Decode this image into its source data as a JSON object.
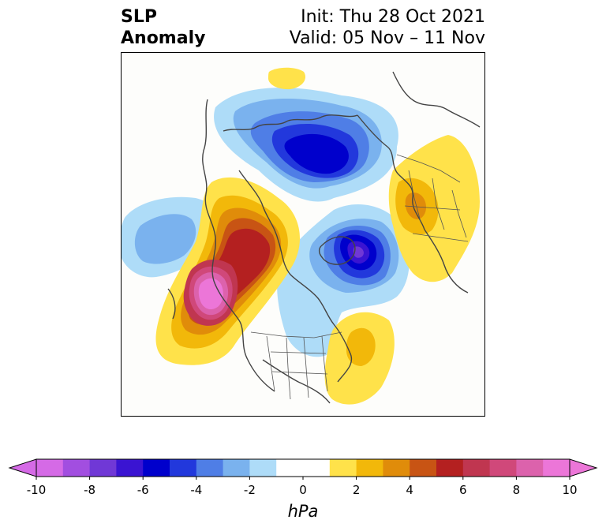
{
  "title": {
    "left_line1": "SLP",
    "left_line2": "Anomaly",
    "right_line1": "Init: Thu 28 Oct 2021",
    "right_line2": "Valid: 05 Nov – 11 Nov"
  },
  "colorbar": {
    "unit": "hPa",
    "ticks": [
      "-10",
      "-8",
      "-6",
      "-4",
      "-2",
      "0",
      "2",
      "4",
      "6",
      "8",
      "10"
    ],
    "tick_values": [
      -10,
      -8,
      -6,
      -4,
      -2,
      0,
      2,
      4,
      6,
      8,
      10
    ],
    "colors": [
      "#d56ae6",
      "#a24ee0",
      "#7038d6",
      "#3a14d2",
      "#0000cc",
      "#2238dc",
      "#4f7ee6",
      "#7ab2ee",
      "#aedcf8",
      "#ffffff",
      "#ffffff",
      "#ffe24a",
      "#f2b80a",
      "#e08c0a",
      "#c85414",
      "#b42020",
      "#c03650",
      "#d0487a",
      "#dc62ac",
      "#ec76d8"
    ],
    "min_extend_color": "#d56ae6",
    "max_extend_color": "#ec76d8"
  }
}
